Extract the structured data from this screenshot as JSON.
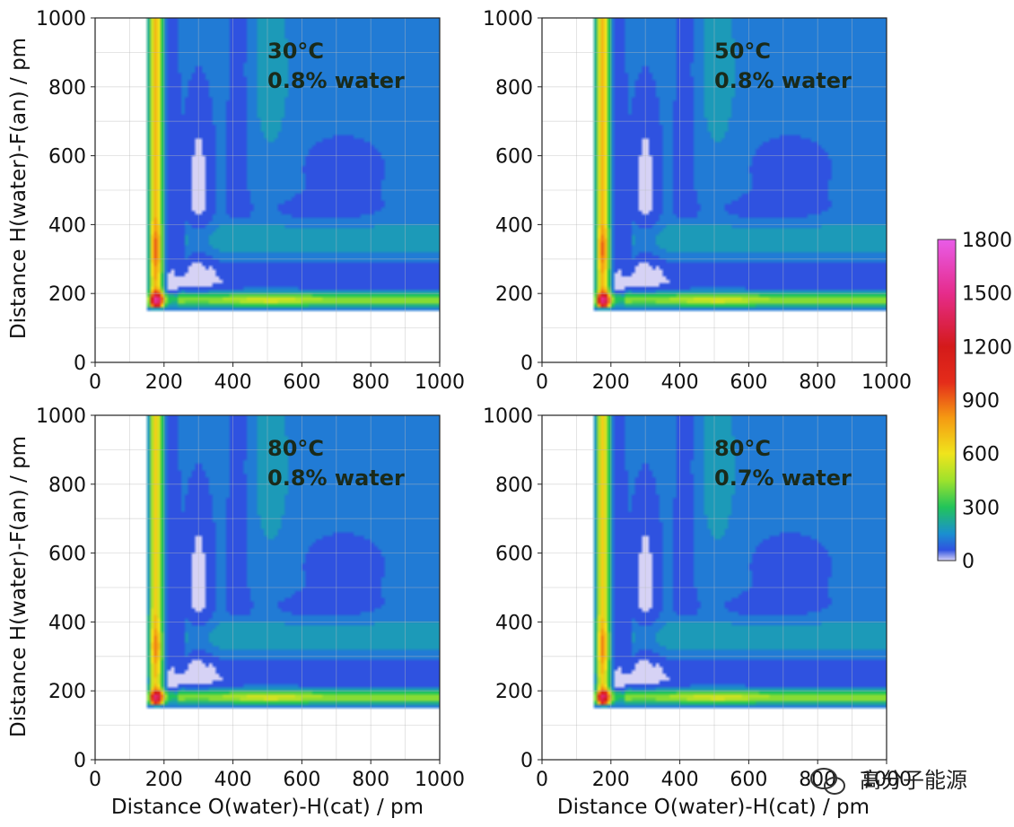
{
  "chart_data": {
    "type": "heatmap",
    "xlabel": "Distance O(water)-H(cat) / pm",
    "ylabel": "Distance H(water)-F(an) / pm",
    "xlim": [
      0,
      1000
    ],
    "ylim": [
      0,
      1000
    ],
    "xticks": [
      "0",
      "200",
      "400",
      "600",
      "800",
      "1000"
    ],
    "yticks": [
      "0",
      "200",
      "400",
      "600",
      "800",
      "1000"
    ],
    "grid": true,
    "colorbar": {
      "min": 0,
      "max": 1800,
      "ticks": [
        "0",
        "300",
        "600",
        "900",
        "1200",
        "1500",
        "1800"
      ],
      "stops": [
        {
          "value": 0,
          "color": "#d6d2f5"
        },
        {
          "value": 60,
          "color": "#2f52e0"
        },
        {
          "value": 150,
          "color": "#1a8fd0"
        },
        {
          "value": 300,
          "color": "#22c45a"
        },
        {
          "value": 450,
          "color": "#9ee22c"
        },
        {
          "value": 600,
          "color": "#f0e41c"
        },
        {
          "value": 800,
          "color": "#f59a12"
        },
        {
          "value": 1000,
          "color": "#e42c1a"
        },
        {
          "value": 1200,
          "color": "#d41a1a"
        },
        {
          "value": 1500,
          "color": "#e62c8c"
        },
        {
          "value": 1800,
          "color": "#e85ce8"
        }
      ]
    },
    "panels": [
      {
        "line1": "30°C",
        "line2": "0.8% water",
        "peak_value": 1050,
        "vline_strength": 620
      },
      {
        "line1": "50°C",
        "line2": "0.8% water",
        "peak_value": 1000,
        "vline_strength": 600
      },
      {
        "line1": "80°C",
        "line2": "0.8% water",
        "peak_value": 960,
        "vline_strength": 560
      },
      {
        "line1": "80°C",
        "line2": "0.7% water",
        "peak_value": 940,
        "vline_strength": 550
      }
    ]
  },
  "watermark": {
    "text": "高分子能源",
    "icon": "wechat-icon"
  }
}
